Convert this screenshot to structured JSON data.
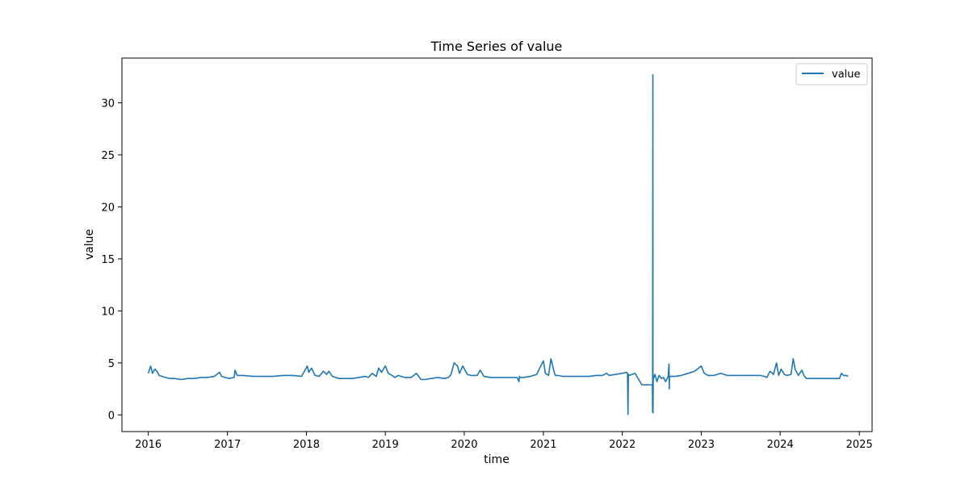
{
  "chart_data": {
    "type": "line",
    "title": "Time Series of value",
    "xlabel": "time",
    "ylabel": "value",
    "xlim": [
      "2015-09-01",
      "2025-03-01"
    ],
    "ylim": [
      -1.6,
      34.3
    ],
    "x_ticks": [
      "2016",
      "2017",
      "2018",
      "2019",
      "2020",
      "2021",
      "2022",
      "2023",
      "2024",
      "2025"
    ],
    "y_ticks": [
      0,
      5,
      10,
      15,
      20,
      25,
      30
    ],
    "grid": false,
    "legend": {
      "position": "top-right",
      "entries": [
        "value"
      ]
    },
    "colors": {
      "series": "#1f77b4",
      "axes": "#000000",
      "background": "#ffffff"
    },
    "series": [
      {
        "name": "value",
        "x": [
          "2016-01-01",
          "2016-01-12",
          "2016-01-20",
          "2016-02-01",
          "2016-02-10",
          "2016-02-20",
          "2016-03-05",
          "2016-03-20",
          "2016-04-10",
          "2016-05-01",
          "2016-06-01",
          "2016-07-01",
          "2016-08-01",
          "2016-09-01",
          "2016-10-01",
          "2016-11-01",
          "2016-11-25",
          "2016-12-05",
          "2016-12-20",
          "2017-01-10",
          "2017-02-01",
          "2017-02-05",
          "2017-02-15",
          "2017-03-15",
          "2017-05-01",
          "2017-06-15",
          "2017-08-01",
          "2017-09-15",
          "2017-11-01",
          "2017-12-10",
          "2018-01-05",
          "2018-01-12",
          "2018-01-25",
          "2018-02-10",
          "2018-03-01",
          "2018-03-20",
          "2018-04-05",
          "2018-04-15",
          "2018-05-01",
          "2018-06-01",
          "2018-07-01",
          "2018-08-01",
          "2018-09-01",
          "2018-10-01",
          "2018-10-15",
          "2018-11-01",
          "2018-11-20",
          "2018-12-01",
          "2018-12-15",
          "2019-01-01",
          "2019-01-15",
          "2019-02-01",
          "2019-02-15",
          "2019-03-01",
          "2019-03-15",
          "2019-04-01",
          "2019-05-01",
          "2019-05-25",
          "2019-06-15",
          "2019-07-01",
          "2019-08-01",
          "2019-09-01",
          "2019-10-01",
          "2019-10-20",
          "2019-11-01",
          "2019-11-15",
          "2019-12-01",
          "2019-12-10",
          "2019-12-25",
          "2020-01-15",
          "2020-02-01",
          "2020-03-01",
          "2020-03-15",
          "2020-04-01",
          "2020-05-01",
          "2020-06-01",
          "2020-07-01",
          "2020-08-01",
          "2020-09-01",
          "2020-09-10",
          "2020-09-12",
          "2020-09-14",
          "2020-10-01",
          "2020-11-01",
          "2020-12-01",
          "2020-12-15",
          "2021-01-01",
          "2021-01-10",
          "2021-01-25",
          "2021-02-05",
          "2021-02-20",
          "2021-02-25",
          "2021-03-10",
          "2021-04-01",
          "2021-05-01",
          "2021-06-01",
          "2021-07-01",
          "2021-08-01",
          "2021-09-01",
          "2021-10-01",
          "2021-10-20",
          "2021-11-01",
          "2021-12-01",
          "2022-01-01",
          "2022-01-20",
          "2022-01-25",
          "2022-01-27",
          "2022-01-29",
          "2022-02-01",
          "2022-02-15",
          "2022-03-01",
          "2022-04-01",
          "2022-04-05",
          "2022-04-20",
          "2022-05-10",
          "2022-05-20",
          "2022-05-21",
          "2022-05-22",
          "2022-05-23",
          "2022-05-24",
          "2022-05-25",
          "2022-06-01",
          "2022-06-10",
          "2022-06-20",
          "2022-07-01",
          "2022-07-10",
          "2022-07-20",
          "2022-08-01",
          "2022-08-05",
          "2022-08-06",
          "2022-08-07",
          "2022-08-08",
          "2022-08-15",
          "2022-09-01",
          "2022-10-01",
          "2022-11-01",
          "2022-12-01",
          "2023-01-01",
          "2023-01-15",
          "2023-02-01",
          "2023-03-01",
          "2023-04-01",
          "2023-05-01",
          "2023-06-01",
          "2023-07-01",
          "2023-08-01",
          "2023-09-01",
          "2023-10-01",
          "2023-10-20",
          "2023-11-01",
          "2023-11-15",
          "2023-12-01",
          "2023-12-15",
          "2023-12-25",
          "2024-01-05",
          "2024-01-20",
          "2024-02-01",
          "2024-02-20",
          "2024-03-01",
          "2024-03-10",
          "2024-03-25",
          "2024-04-10",
          "2024-04-20",
          "2024-05-01",
          "2024-06-01",
          "2024-07-01",
          "2024-08-01",
          "2024-09-01",
          "2024-10-01",
          "2024-10-10",
          "2024-10-20",
          "2024-11-01",
          "2024-11-10"
        ],
        "values": [
          4.0,
          4.7,
          4.0,
          4.4,
          4.2,
          3.8,
          3.7,
          3.6,
          3.5,
          3.5,
          3.4,
          3.5,
          3.5,
          3.6,
          3.6,
          3.7,
          4.1,
          3.7,
          3.6,
          3.5,
          3.6,
          4.3,
          3.8,
          3.8,
          3.7,
          3.7,
          3.7,
          3.8,
          3.8,
          3.7,
          4.7,
          4.1,
          4.5,
          3.8,
          3.7,
          4.2,
          3.9,
          4.2,
          3.7,
          3.5,
          3.5,
          3.5,
          3.6,
          3.7,
          3.6,
          4.0,
          3.7,
          4.5,
          4.1,
          4.7,
          4.0,
          3.8,
          3.6,
          3.8,
          3.7,
          3.6,
          3.6,
          4.0,
          3.4,
          3.4,
          3.5,
          3.6,
          3.5,
          3.6,
          3.9,
          5.0,
          4.7,
          4.0,
          4.7,
          3.9,
          3.8,
          3.8,
          4.3,
          3.7,
          3.6,
          3.6,
          3.6,
          3.6,
          3.6,
          3.2,
          3.7,
          3.6,
          3.6,
          3.7,
          3.9,
          4.5,
          5.2,
          4.0,
          3.8,
          5.4,
          4.1,
          3.8,
          3.8,
          3.7,
          3.7,
          3.7,
          3.7,
          3.7,
          3.8,
          3.8,
          4.0,
          3.8,
          3.9,
          4.0,
          4.1,
          4.0,
          0.05,
          3.9,
          3.8,
          3.9,
          4.0,
          2.9,
          2.9,
          2.9,
          2.9,
          2.9,
          0.3,
          32.7,
          0.2,
          3.8,
          3.5,
          3.9,
          3.2,
          3.8,
          3.5,
          3.6,
          3.2,
          3.7,
          4.9,
          2.5,
          3.6,
          3.7,
          3.7,
          3.7,
          3.8,
          4.0,
          4.2,
          4.7,
          4.0,
          3.8,
          3.8,
          4.0,
          3.8,
          3.8,
          3.8,
          3.8,
          3.8,
          3.8,
          3.7,
          3.6,
          4.2,
          3.9,
          5.0,
          3.8,
          4.4,
          3.9,
          3.8,
          3.9,
          5.4,
          4.4,
          3.8,
          4.3,
          3.8,
          3.5,
          3.5,
          3.5,
          3.5,
          3.5,
          3.5,
          4.0,
          3.8,
          3.8,
          3.7
        ]
      }
    ]
  }
}
